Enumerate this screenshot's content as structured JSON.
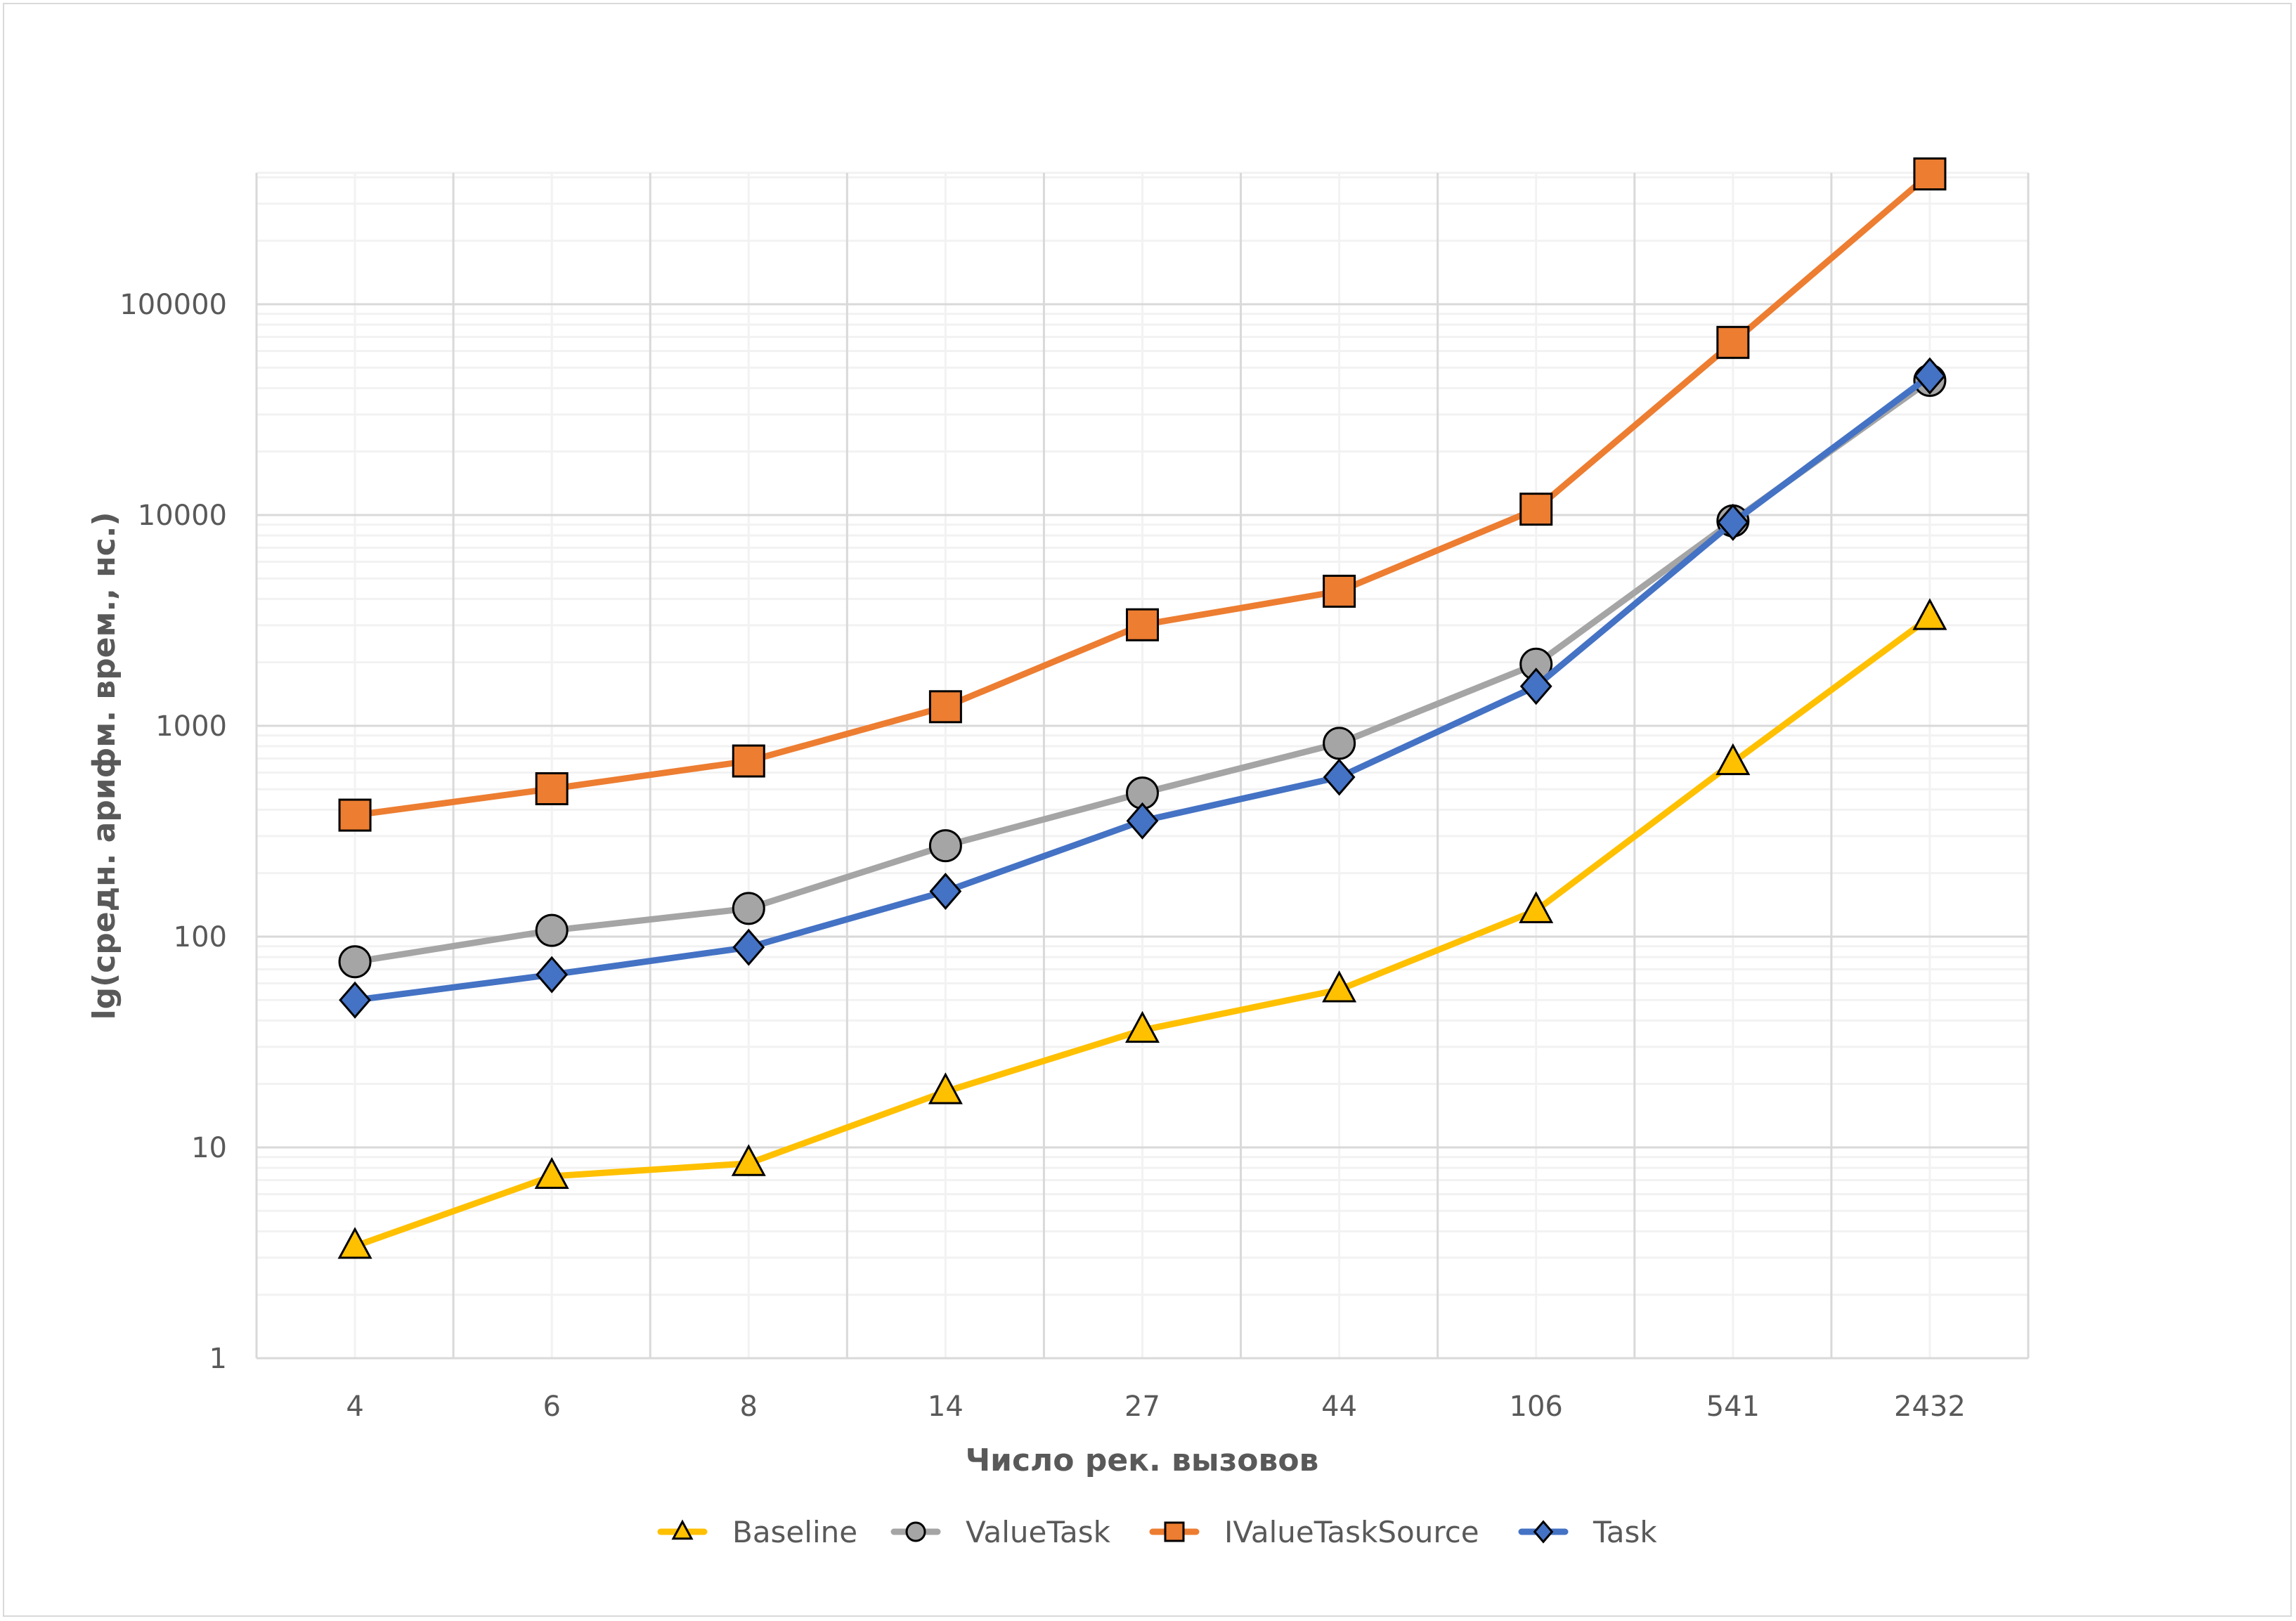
{
  "chart_data": {
    "type": "line",
    "title": "",
    "xlabel": "Число рек. вызовов",
    "ylabel": "lg(средн. арифм. врем., нс.)",
    "yscale": "log",
    "ylim": [
      1,
      420000
    ],
    "yticks": [
      "1",
      "10",
      "100",
      "1000",
      "10000",
      "100000"
    ],
    "grid": true,
    "legend": "bottom",
    "categories": [
      "4",
      "6",
      "8",
      "14",
      "27",
      "44",
      "106",
      "541",
      "2432"
    ],
    "series": [
      {
        "name": "Baseline",
        "color": "#FFC000",
        "marker": "triangle",
        "values": [
          3.4,
          7.3,
          8.4,
          18.4,
          36,
          56,
          133,
          670,
          3270
        ]
      },
      {
        "name": "ValueTask",
        "color": "#A5A5A5",
        "marker": "circle",
        "values": [
          76,
          107,
          136,
          270,
          480,
          826,
          1960,
          9380,
          43500
        ]
      },
      {
        "name": "IValueTaskSource",
        "color": "#ED7D31",
        "marker": "square",
        "values": [
          377,
          503,
          681,
          1232,
          3015,
          4350,
          10660,
          65900,
          415000
        ]
      },
      {
        "name": "Task",
        "color": "#4472C4",
        "marker": "diamond",
        "values": [
          50,
          66,
          89,
          164,
          354,
          571,
          1540,
          9230,
          45700
        ]
      }
    ]
  }
}
